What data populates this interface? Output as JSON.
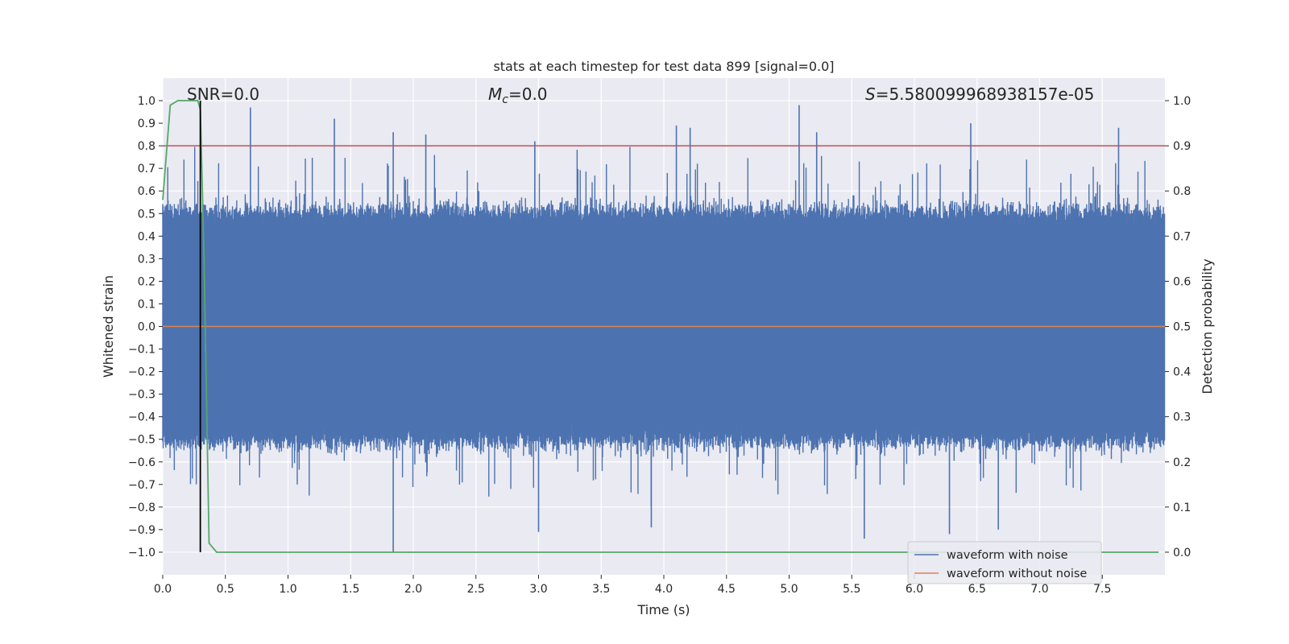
{
  "chart_data": {
    "type": "line",
    "title": "stats at each timestep for test data 899 [signal=0.0]",
    "xlabel": "Time (s)",
    "ylabel": "Whitened strain",
    "y2label": "Detection probability",
    "xlim": [
      0.0,
      8.0
    ],
    "ylim": [
      -1.1,
      1.1
    ],
    "y2lim": [
      -0.05,
      1.05
    ],
    "xticks": [
      "0.0",
      "0.5",
      "1.0",
      "1.5",
      "2.0",
      "2.5",
      "3.0",
      "3.5",
      "4.0",
      "4.5",
      "5.0",
      "5.5",
      "6.0",
      "6.5",
      "7.0",
      "7.5"
    ],
    "xtick_values": [
      0.0,
      0.5,
      1.0,
      1.5,
      2.0,
      2.5,
      3.0,
      3.5,
      4.0,
      4.5,
      5.0,
      5.5,
      6.0,
      6.5,
      7.0,
      7.5
    ],
    "yticks": [
      "1.0",
      "0.9",
      "0.8",
      "0.7",
      "0.6",
      "0.5",
      "0.4",
      "0.3",
      "0.2",
      "0.1",
      "0.0",
      "−0.1",
      "−0.2",
      "−0.3",
      "−0.4",
      "−0.5",
      "−0.6",
      "−0.7",
      "−0.8",
      "−0.9",
      "−1.0"
    ],
    "ytick_values": [
      1.0,
      0.9,
      0.8,
      0.7,
      0.6,
      0.5,
      0.4,
      0.3,
      0.2,
      0.1,
      0.0,
      -0.1,
      -0.2,
      -0.3,
      -0.4,
      -0.5,
      -0.6,
      -0.7,
      -0.8,
      -0.9,
      -1.0
    ],
    "y2ticks": [
      "1.0",
      "0.9",
      "0.8",
      "0.7",
      "0.6",
      "0.5",
      "0.4",
      "0.3",
      "0.2",
      "0.1",
      "0.0"
    ],
    "y2tick_values": [
      1.0,
      0.9,
      0.8,
      0.7,
      0.6,
      0.5,
      0.4,
      0.3,
      0.2,
      0.1,
      0.0
    ],
    "annotations": {
      "snr": "SNR=0.0",
      "mc_symbol": "M",
      "mc_sub": "c",
      "mc_value": "=0.0",
      "s_symbol": "S",
      "s_value": "=5.580099968938157e-05"
    },
    "series": [
      {
        "name": "waveform with noise",
        "color": "#4c72b0",
        "description": "dense noise, envelope roughly +/-0.5, peaks near +/-1.0",
        "envelope": {
          "typical_upper": 0.5,
          "typical_lower": -0.5
        },
        "peaks": [
          {
            "x": 0.7,
            "y": 0.97
          },
          {
            "x": 1.37,
            "y": 0.92
          },
          {
            "x": 1.84,
            "y": 0.86
          },
          {
            "x": 1.84,
            "y": -1.0
          },
          {
            "x": 2.1,
            "y": 0.85
          },
          {
            "x": 2.97,
            "y": 0.82
          },
          {
            "x": 4.1,
            "y": 0.89
          },
          {
            "x": 4.21,
            "y": 0.88
          },
          {
            "x": 5.08,
            "y": 0.98
          },
          {
            "x": 5.22,
            "y": 0.86
          },
          {
            "x": 6.45,
            "y": 0.9
          },
          {
            "x": 7.63,
            "y": 0.88
          },
          {
            "x": 3.0,
            "y": -0.91
          },
          {
            "x": 3.9,
            "y": -0.89
          },
          {
            "x": 5.6,
            "y": -0.94
          },
          {
            "x": 6.28,
            "y": -0.92
          },
          {
            "x": 6.67,
            "y": -0.9
          }
        ]
      },
      {
        "name": "waveform without noise",
        "color": "#dd8452",
        "values_constant": 0.0
      },
      {
        "name": "detection probability",
        "color": "#55a868",
        "axis": "right",
        "x": [
          0.0,
          0.06,
          0.12,
          0.28,
          0.3,
          0.33,
          0.37,
          0.43,
          7.95
        ],
        "y": [
          0.78,
          0.99,
          1.0,
          1.0,
          0.98,
          0.65,
          0.02,
          0.0,
          0.0
        ]
      },
      {
        "name": "threshold",
        "color": "#c44e52",
        "axis": "right",
        "values_constant": 0.9
      },
      {
        "name": "marker line",
        "color": "#000000",
        "x": 0.3,
        "y_range": [
          -1.0,
          1.0
        ]
      }
    ],
    "legend": {
      "location": "lower-right",
      "entries": [
        "waveform with noise",
        "waveform without noise"
      ]
    },
    "grid": true,
    "colors": {
      "background": "#eaeaf2",
      "grid": "#ffffff"
    }
  }
}
